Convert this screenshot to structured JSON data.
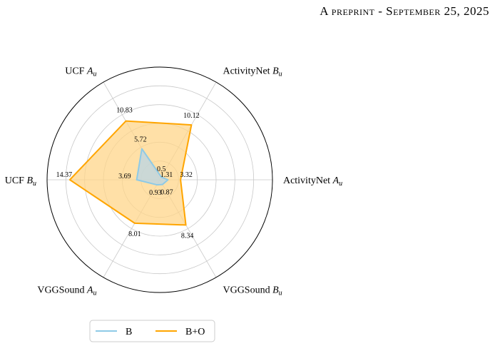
{
  "header": {
    "text": "A preprint - September 25, 2025"
  },
  "chart_data": {
    "type": "radar",
    "axes": [
      {
        "name": "ActivityNet",
        "sub": "A",
        "sub2": "u"
      },
      {
        "name": "ActivityNet",
        "sub": "B",
        "sub2": "u"
      },
      {
        "name": "UCF",
        "sub": "A",
        "sub2": "u"
      },
      {
        "name": "UCF",
        "sub": "B",
        "sub2": "u"
      },
      {
        "name": "VGGSound",
        "sub": "A",
        "sub2": "u"
      },
      {
        "name": "VGGSound",
        "sub": "B",
        "sub2": "u"
      }
    ],
    "rmax": 18,
    "rings": [
      3,
      6,
      9,
      12,
      15,
      18
    ],
    "series": [
      {
        "name": "B",
        "values": [
          1.31,
          0.5,
          5.72,
          3.69,
          0.93,
          0.87
        ],
        "color": "#8ecae6",
        "fill": "#b9d6e6"
      },
      {
        "name": "B+O",
        "values": [
          3.32,
          10.12,
          10.83,
          14.37,
          8.01,
          8.34
        ],
        "color": "#ffa500",
        "fill": "#ffd58a"
      }
    ],
    "legend": {
      "placement": "bottom"
    }
  }
}
